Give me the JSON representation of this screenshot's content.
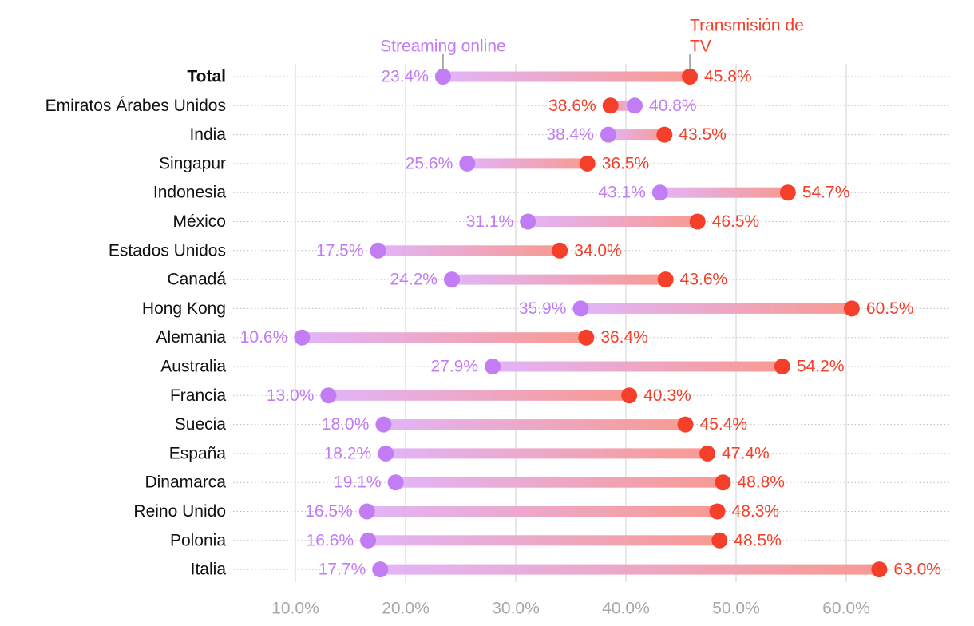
{
  "chart_data": {
    "type": "dumbbell",
    "colors": {
      "streaming": "#c27cf4",
      "tv": "#f4402a",
      "streaming_light": "#e2b4f8",
      "tv_light": "#f89a92",
      "grid": "#d9d9d9",
      "row_guide": "#bfbfbf",
      "axis_text": "#a8a8a8"
    },
    "series": [
      {
        "key": "streaming",
        "name": "Streaming online"
      },
      {
        "key": "tv",
        "name": "Transmisión de TV"
      }
    ],
    "tv_legend_lines": [
      "Transmisión de",
      "TV"
    ],
    "xlim": [
      0.0,
      66.0
    ],
    "ticks": [
      10,
      20,
      30,
      40,
      50,
      60
    ],
    "tick_labels": [
      "10.0%",
      "20.0%",
      "30.0%",
      "40.0%",
      "50.0%",
      "60.0%"
    ],
    "rows": [
      {
        "label": "Total",
        "bold": true,
        "streaming": 23.4,
        "tv": 45.8,
        "streaming_label": "23.4%",
        "tv_label": "45.8%"
      },
      {
        "label": "Emiratos Árabes Unidos",
        "bold": false,
        "streaming": 40.8,
        "tv": 38.6,
        "streaming_label": "40.8%",
        "tv_label": "38.6%"
      },
      {
        "label": "India",
        "bold": false,
        "streaming": 38.4,
        "tv": 43.5,
        "streaming_label": "38.4%",
        "tv_label": "43.5%"
      },
      {
        "label": "Singapur",
        "bold": false,
        "streaming": 25.6,
        "tv": 36.5,
        "streaming_label": "25.6%",
        "tv_label": "36.5%"
      },
      {
        "label": "Indonesia",
        "bold": false,
        "streaming": 43.1,
        "tv": 54.7,
        "streaming_label": "43.1%",
        "tv_label": "54.7%"
      },
      {
        "label": "México",
        "bold": false,
        "streaming": 31.1,
        "tv": 46.5,
        "streaming_label": "31.1%",
        "tv_label": "46.5%"
      },
      {
        "label": "Estados Unidos",
        "bold": false,
        "streaming": 17.5,
        "tv": 34.0,
        "streaming_label": "17.5%",
        "tv_label": "34.0%"
      },
      {
        "label": "Canadá",
        "bold": false,
        "streaming": 24.2,
        "tv": 43.6,
        "streaming_label": "24.2%",
        "tv_label": "43.6%"
      },
      {
        "label": "Hong Kong",
        "bold": false,
        "streaming": 35.9,
        "tv": 60.5,
        "streaming_label": "35.9%",
        "tv_label": "60.5%"
      },
      {
        "label": "Alemania",
        "bold": false,
        "streaming": 10.6,
        "tv": 36.4,
        "streaming_label": "10.6%",
        "tv_label": "36.4%"
      },
      {
        "label": "Australia",
        "bold": false,
        "streaming": 27.9,
        "tv": 54.2,
        "streaming_label": "27.9%",
        "tv_label": "54.2%"
      },
      {
        "label": "Francia",
        "bold": false,
        "streaming": 13.0,
        "tv": 40.3,
        "streaming_label": "13.0%",
        "tv_label": "40.3%"
      },
      {
        "label": "Suecia",
        "bold": false,
        "streaming": 18.0,
        "tv": 45.4,
        "streaming_label": "18.0%",
        "tv_label": "45.4%"
      },
      {
        "label": "España",
        "bold": false,
        "streaming": 18.2,
        "tv": 47.4,
        "streaming_label": "18.2%",
        "tv_label": "47.4%"
      },
      {
        "label": "Dinamarca",
        "bold": false,
        "streaming": 19.1,
        "tv": 48.8,
        "streaming_label": "19.1%",
        "tv_label": "48.8%"
      },
      {
        "label": "Reino Unido",
        "bold": false,
        "streaming": 16.5,
        "tv": 48.3,
        "streaming_label": "16.5%",
        "tv_label": "48.3%"
      },
      {
        "label": "Polonia",
        "bold": false,
        "streaming": 16.6,
        "tv": 48.5,
        "streaming_label": "16.6%",
        "tv_label": "48.5%"
      },
      {
        "label": "Italia",
        "bold": false,
        "streaming": 17.7,
        "tv": 63.0,
        "streaming_label": "17.7%",
        "tv_label": "63.0%"
      }
    ]
  }
}
